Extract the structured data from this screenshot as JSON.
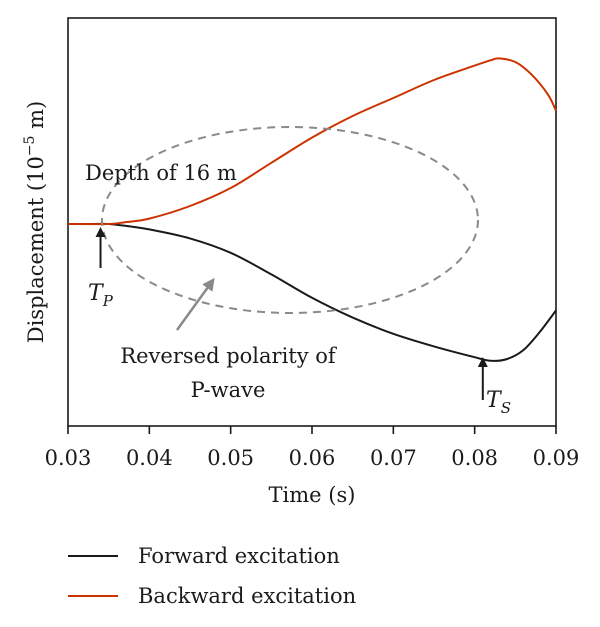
{
  "chart_data": {
    "type": "line",
    "xlabel": "Time (s)",
    "ylabel": "Displacement (10",
    "ylabel_exp": "−5",
    "ylabel_unit": " m)",
    "xlim": [
      0.03,
      0.09
    ],
    "ylim": [
      -1.0,
      1.0
    ],
    "x_ticks": [
      "0.03",
      "0.04",
      "0.05",
      "0.06",
      "0.07",
      "0.08",
      "0.09"
    ],
    "x_tick_values": [
      0.03,
      0.04,
      0.05,
      0.06,
      0.07,
      0.08,
      0.09
    ],
    "grid": false,
    "legend_position": "bottom",
    "series": [
      {
        "name": "Forward excitation",
        "color": "#1a1a1a",
        "x": [
          0.03,
          0.033,
          0.035,
          0.037,
          0.04,
          0.045,
          0.05,
          0.055,
          0.06,
          0.065,
          0.07,
          0.075,
          0.08,
          0.082,
          0.084,
          0.086,
          0.088,
          0.09
        ],
        "y": [
          0.0,
          0.0,
          0.0,
          -0.01,
          -0.03,
          -0.08,
          -0.16,
          -0.28,
          -0.41,
          -0.52,
          -0.61,
          -0.68,
          -0.74,
          -0.76,
          -0.75,
          -0.7,
          -0.6,
          -0.48
        ]
      },
      {
        "name": "Backward excitation",
        "color": "#cc3300",
        "x": [
          0.03,
          0.035,
          0.037,
          0.04,
          0.045,
          0.05,
          0.055,
          0.06,
          0.065,
          0.07,
          0.075,
          0.08,
          0.082,
          0.083,
          0.085,
          0.087,
          0.089,
          0.09
        ],
        "y": [
          0.0,
          0.0,
          0.01,
          0.03,
          0.1,
          0.2,
          0.34,
          0.48,
          0.6,
          0.7,
          0.8,
          0.88,
          0.91,
          0.92,
          0.9,
          0.83,
          0.72,
          0.63
        ]
      }
    ],
    "annotations": {
      "depth": "Depth of 16 m",
      "tp_main": "T",
      "tp_sub": "P",
      "ts_main": "T",
      "ts_sub": "S",
      "reversed_line1": "Reversed polarity of",
      "reversed_line2": "P-wave",
      "tp_x": 0.034,
      "ts_x": 0.081
    }
  }
}
